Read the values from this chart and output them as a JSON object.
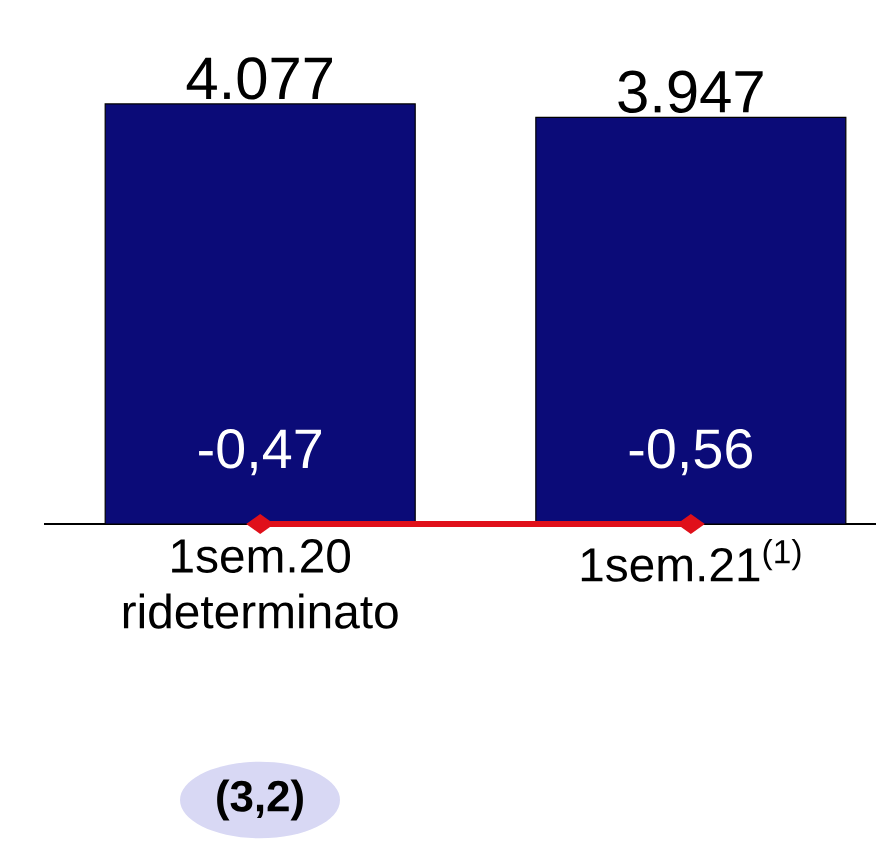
{
  "chart_data": {
    "type": "bar",
    "categories": [
      "1sem.20 rideterminato",
      "1sem.21$^{(1)}$"
    ],
    "values": [
      4077,
      3947
    ],
    "value_labels": [
      "4.077",
      "3.947"
    ],
    "color": "#0b0b78",
    "annotations": [
      "-0,47",
      "-0,56",
      "(3,2)"
    ]
  }
}
